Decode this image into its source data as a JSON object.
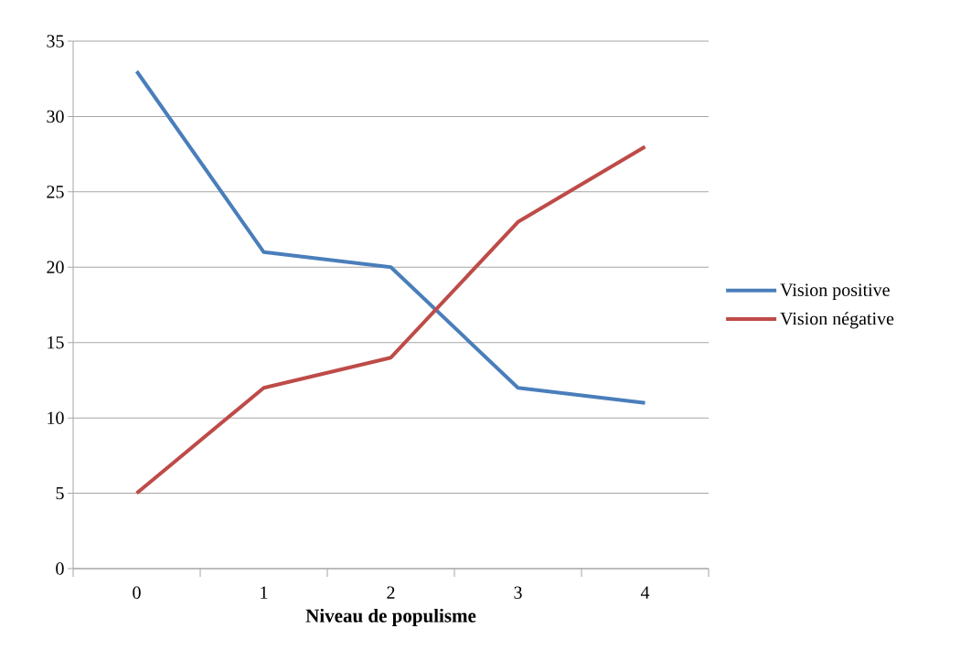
{
  "chart_data": {
    "type": "line",
    "xlabel": "Niveau de populisme",
    "categories": [
      "0",
      "1",
      "2",
      "3",
      "4"
    ],
    "series": [
      {
        "name": "Vision positive",
        "color": "#4a7ebb",
        "values": [
          33,
          21,
          20,
          12,
          11
        ]
      },
      {
        "name": "Vision négative",
        "color": "#be4b48",
        "values": [
          5,
          12,
          14,
          23,
          28
        ]
      }
    ],
    "ylim": [
      0,
      35
    ],
    "yticks": [
      0,
      5,
      10,
      15,
      20,
      25,
      30,
      35
    ],
    "grid": "y",
    "legend": "right"
  }
}
